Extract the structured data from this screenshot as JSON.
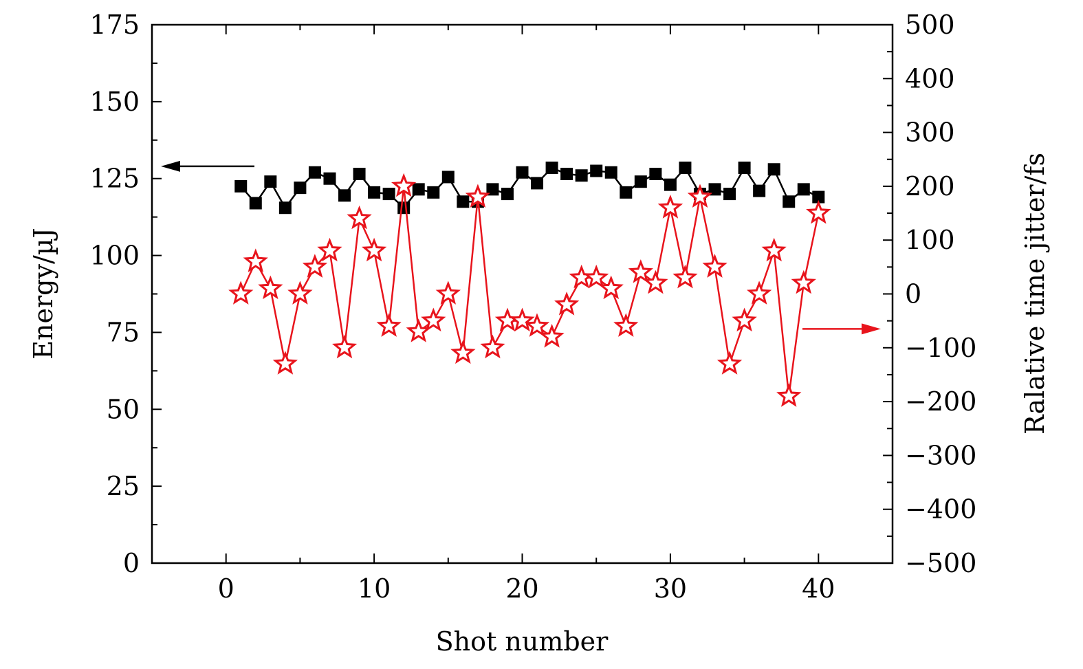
{
  "chart_data": {
    "type": "line",
    "xlabel": "Shot number",
    "ylabel_left": "Energy/µJ",
    "ylabel_right": "Ralative time jitter/fs",
    "xlim": [
      -5,
      45
    ],
    "ylim_left": [
      0,
      175
    ],
    "ylim_right": [
      -500,
      500
    ],
    "x_ticks": [
      0,
      10,
      20,
      30,
      40
    ],
    "y_ticks_left": [
      0,
      25,
      50,
      75,
      100,
      125,
      150,
      175
    ],
    "y_ticks_right": [
      -500,
      -400,
      -300,
      -200,
      -100,
      0,
      100,
      200,
      300,
      400,
      500
    ],
    "x_tick_labels": [
      "0",
      "10",
      "20",
      "30",
      "40"
    ],
    "y_tick_labels_left": [
      "0",
      "25",
      "50",
      "75",
      "100",
      "125",
      "150",
      "175"
    ],
    "y_tick_labels_right": [
      "−500",
      "−400",
      "−300",
      "−200",
      "−100",
      "0",
      "100",
      "200",
      "300",
      "400",
      "500"
    ],
    "grid": false,
    "x": [
      1,
      2,
      3,
      4,
      5,
      6,
      7,
      8,
      9,
      10,
      11,
      12,
      13,
      14,
      15,
      16,
      17,
      18,
      19,
      20,
      21,
      22,
      23,
      24,
      25,
      26,
      27,
      28,
      29,
      30,
      31,
      32,
      33,
      34,
      35,
      36,
      37,
      38,
      39,
      40
    ],
    "series": [
      {
        "axis": "left",
        "color": "#000000",
        "marker": "square",
        "values": [
          122.5,
          117,
          124,
          115.5,
          122,
          127,
          125,
          119.5,
          126.5,
          120.5,
          120,
          115.5,
          121.5,
          120.5,
          125.5,
          117.5,
          117.5,
          121.5,
          120,
          127,
          123.5,
          128.5,
          126.5,
          126,
          127.5,
          127,
          120.5,
          124,
          126.5,
          123,
          128.5,
          120,
          121.5,
          120,
          128.5,
          121,
          128,
          117.5,
          121.5,
          119
        ]
      },
      {
        "axis": "right",
        "color": "#e8141c",
        "marker": "star",
        "values": [
          0,
          60,
          10,
          -130,
          0,
          50,
          80,
          -100,
          140,
          80,
          -60,
          200,
          -70,
          -50,
          0,
          -110,
          180,
          -100,
          -50,
          -50,
          -60,
          -80,
          -20,
          30,
          30,
          10,
          -60,
          40,
          20,
          160,
          30,
          180,
          50,
          -130,
          -50,
          0,
          80,
          -190,
          20,
          150
        ]
      }
    ]
  }
}
